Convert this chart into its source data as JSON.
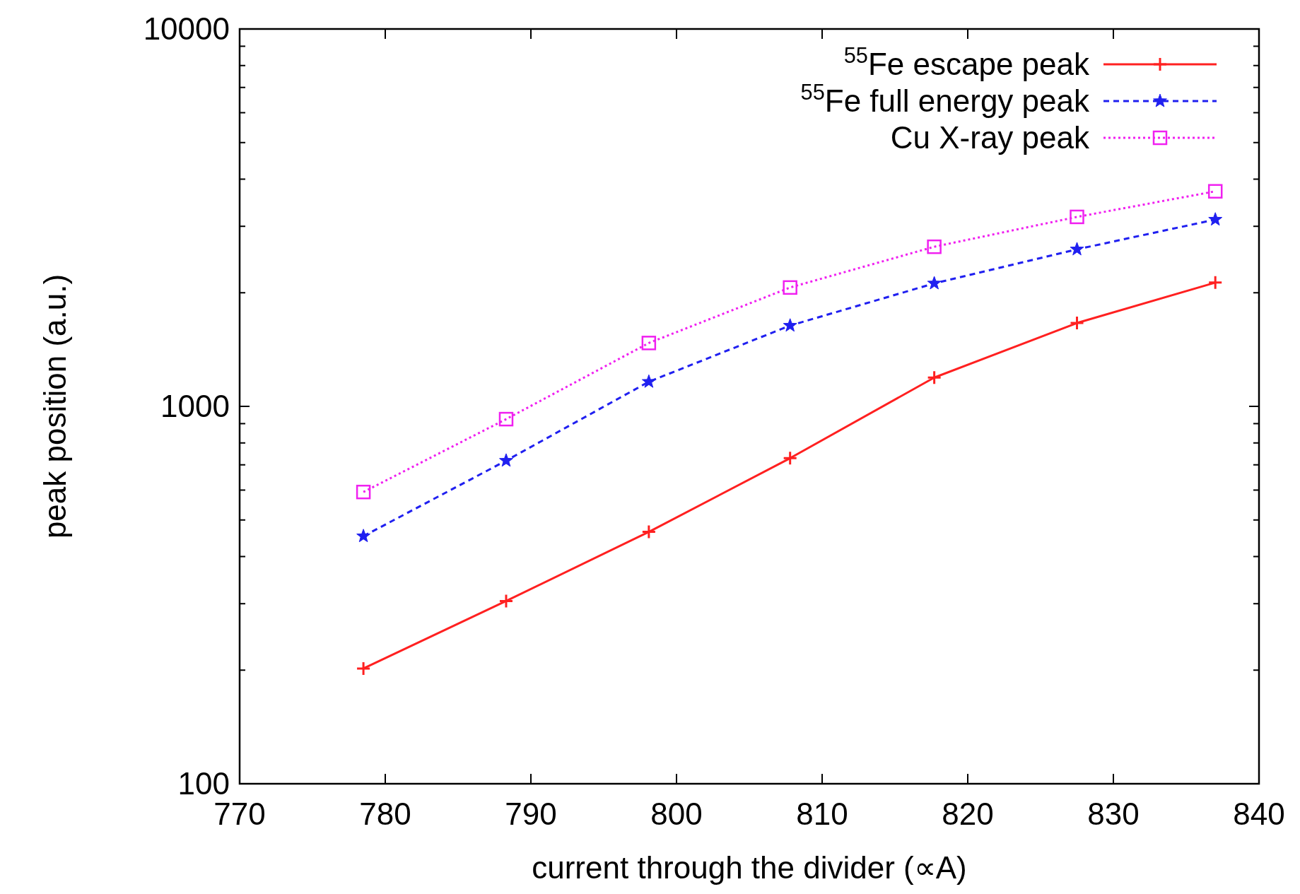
{
  "chart_data": {
    "type": "line",
    "xlabel": "current through the divider (∝A)",
    "ylabel": "peak position (a.u.)",
    "log": "y",
    "xlim": [
      770,
      840
    ],
    "xticks": [
      770,
      780,
      790,
      800,
      810,
      820,
      830,
      840
    ],
    "ylim": [
      100,
      10000
    ],
    "yticks": [
      100,
      {
        "value": 200,
        "label": null
      },
      {
        "value": 300,
        "label": null
      },
      {
        "value": 400,
        "label": null
      },
      {
        "value": 500,
        "label": null
      },
      {
        "value": 600,
        "label": null
      },
      {
        "value": 700,
        "label": null
      },
      {
        "value": 800,
        "label": null
      },
      {
        "value": 900,
        "label": null
      },
      1000,
      {
        "value": 2000,
        "label": null
      },
      {
        "value": 3000,
        "label": null
      },
      {
        "value": 4000,
        "label": null
      },
      {
        "value": 5000,
        "label": null
      },
      {
        "value": 6000,
        "label": null
      },
      {
        "value": 7000,
        "label": null
      },
      {
        "value": 8000,
        "label": null
      },
      {
        "value": 9000,
        "label": null
      },
      10000
    ],
    "grid": false,
    "legend": "top right",
    "x": [
      778.5,
      788.3,
      798.1,
      807.8,
      817.7,
      827.5,
      837.0
    ],
    "series": [
      {
        "name": "$^{55}$Fe escape peak",
        "color": "#ff2020",
        "marker": "cross",
        "line_style": "solid",
        "values": [
          202,
          305,
          465,
          729,
          1192,
          1663,
          2128
        ]
      },
      {
        "name": "$^{55}$Fe full energy peak",
        "color": "#2020f0",
        "marker": "star",
        "line_style": "dashed",
        "values": [
          453,
          718,
          1162,
          1637,
          2118,
          2607,
          3126
        ]
      },
      {
        "name": "Cu X-ray peak",
        "color": "#f020f0",
        "marker": "square",
        "line_style": "dotted",
        "values": [
          593,
          925,
          1472,
          2065,
          2648,
          3177,
          3714
        ]
      }
    ]
  }
}
